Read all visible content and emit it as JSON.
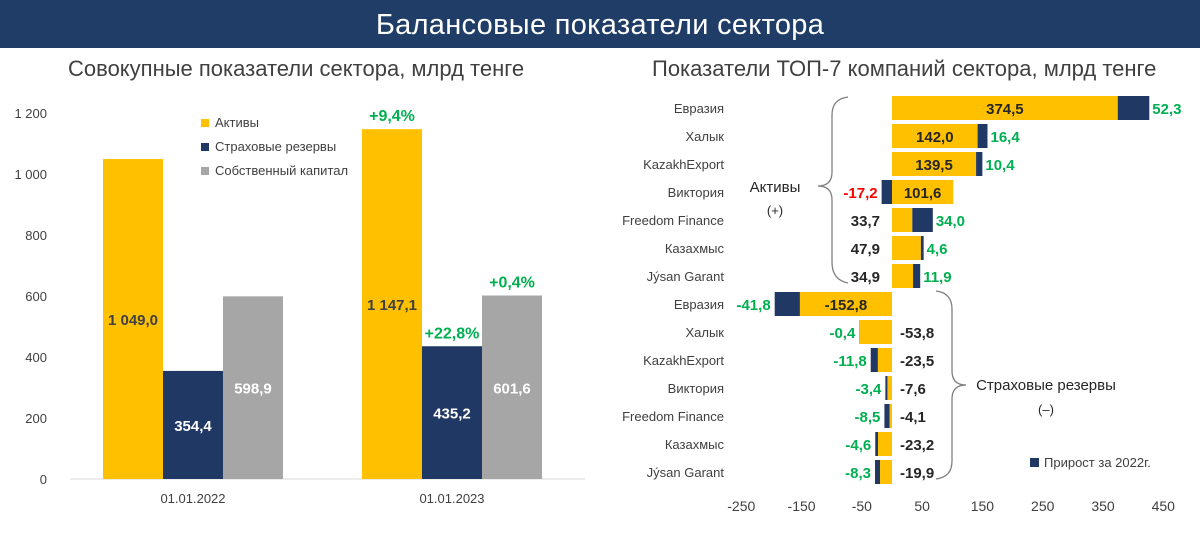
{
  "header": {
    "title": "Балансовые показатели сектора"
  },
  "colors": {
    "banner": "#1f3d66",
    "assets": "#ffc000",
    "reserves": "#203864",
    "capital": "#a6a6a6",
    "growth": "#00b050",
    "decline": "#ff0000"
  },
  "chart_data": [
    {
      "type": "bar",
      "title": "Совокупные показатели сектора, млрд тенге",
      "categories": [
        "01.01.2022",
        "01.01.2023"
      ],
      "series": [
        {
          "name": "Активы",
          "values": [
            1049.0,
            1147.1
          ],
          "labels": [
            "1 049,0",
            "1 147,1"
          ]
        },
        {
          "name": "Страховые резервы",
          "values": [
            354.4,
            435.2
          ],
          "labels": [
            "354,4",
            "435,2"
          ]
        },
        {
          "name": "Собственный капитал",
          "values": [
            598.9,
            601.6
          ],
          "labels": [
            "598,9",
            "601,6"
          ]
        }
      ],
      "growth_labels": [
        "+9,4%",
        "+22,8%",
        "+0,4%"
      ],
      "ylim": [
        0,
        1200
      ],
      "yticks": [
        0,
        200,
        400,
        600,
        800,
        1000,
        1200
      ],
      "ytick_labels": [
        "0",
        "200",
        "400",
        "600",
        "800",
        "1 000",
        "1 200"
      ],
      "legend_position": "top-right"
    },
    {
      "type": "bar",
      "orientation": "horizontal",
      "title": "Показатели ТОП-7 компаний сектора, млрд тенге",
      "xlim": [
        -250,
        450
      ],
      "xticks": [
        -250,
        -150,
        -50,
        50,
        150,
        250,
        350,
        450
      ],
      "legend": "Прирост за 2022г.",
      "groups": [
        {
          "label": "Активы",
          "sublabel": "(+)",
          "rows": [
            {
              "company": "Евразия",
              "value": 374.5,
              "value_label": "374,5",
              "growth": 52.3,
              "growth_label": "52,3"
            },
            {
              "company": "Халык",
              "value": 142.0,
              "value_label": "142,0",
              "growth": 16.4,
              "growth_label": "16,4"
            },
            {
              "company": "KazakhExport",
              "value": 139.5,
              "value_label": "139,5",
              "growth": 10.4,
              "growth_label": "10,4"
            },
            {
              "company": "Виктория",
              "value": 101.6,
              "value_label": "101,6",
              "growth": -17.2,
              "growth_label": "-17,2"
            },
            {
              "company": "Freedom Finance",
              "value": 33.7,
              "value_label": "33,7",
              "growth": 34.0,
              "growth_label": "34,0"
            },
            {
              "company": "Казахмыс",
              "value": 47.9,
              "value_label": "47,9",
              "growth": 4.6,
              "growth_label": "4,6"
            },
            {
              "company": "Jýsan Garant",
              "value": 34.9,
              "value_label": "34,9",
              "growth": 11.9,
              "growth_label": "11,9"
            }
          ]
        },
        {
          "label": "Страховые резервы",
          "sublabel": "(–)",
          "rows": [
            {
              "company": "Евразия",
              "value": -152.8,
              "value_label": "-152,8",
              "growth": -41.8,
              "growth_label": "-41,8"
            },
            {
              "company": "Халык",
              "value": -53.8,
              "value_label": "-53,8",
              "growth": -0.4,
              "growth_label": "-0,4"
            },
            {
              "company": "KazakhExport",
              "value": -23.5,
              "value_label": "-23,5",
              "growth": -11.8,
              "growth_label": "-11,8"
            },
            {
              "company": "Виктория",
              "value": -7.6,
              "value_label": "-7,6",
              "growth": -3.4,
              "growth_label": "-3,4"
            },
            {
              "company": "Freedom Finance",
              "value": -4.1,
              "value_label": "-4,1",
              "growth": -8.5,
              "growth_label": "-8,5"
            },
            {
              "company": "Казахмыс",
              "value": -23.2,
              "value_label": "-23,2",
              "growth": -4.6,
              "growth_label": "-4,6"
            },
            {
              "company": "Jýsan Garant",
              "value": -19.9,
              "value_label": "-19,9",
              "growth": -8.3,
              "growth_label": "-8,3"
            }
          ]
        }
      ]
    }
  ]
}
